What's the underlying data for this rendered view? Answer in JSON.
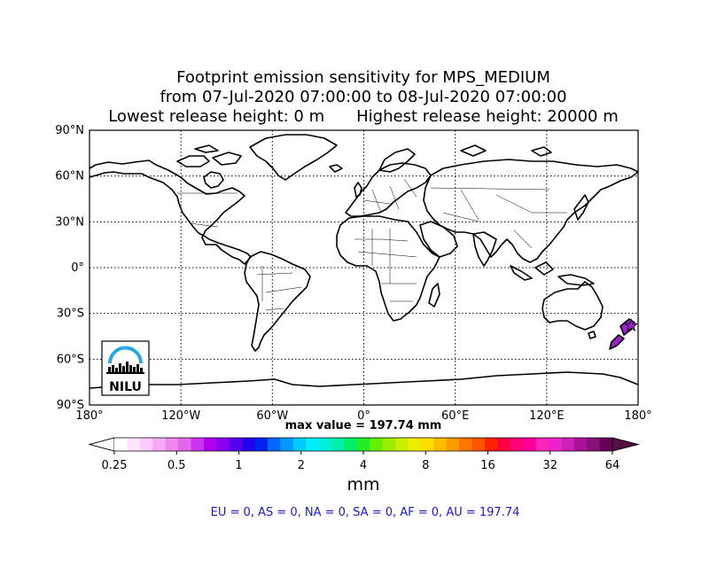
{
  "title": {
    "line1": "Footprint emission sensitivity for MPS_MEDIUM",
    "line2": "from 07-Jul-2020 07:00:00 to 08-Jul-2020 07:00:00",
    "line3a": "Lowest release height: 0 m",
    "line3b": "Highest release height: 20000 m"
  },
  "map": {
    "lat_labels": [
      "90°N",
      "60°N",
      "30°N",
      "0°",
      "30°S",
      "60°S",
      "90°S"
    ],
    "lon_labels": [
      "180°",
      "120°W",
      "60°W",
      "0°",
      "60°E",
      "120°E",
      "180°"
    ],
    "graticule": "dotted",
    "logo_text": "NILU",
    "max_marker": {
      "lon": 175.5,
      "lat": -38.0,
      "color": "#9b22c4"
    }
  },
  "max_value_text": "max value = 197.74 mm",
  "colorbar": {
    "ticks": [
      "0.25",
      "0.5",
      "1",
      "2",
      "4",
      "8",
      "16",
      "32",
      "64"
    ],
    "unit": "mm",
    "colors": [
      "#ffffff",
      "#ffe6ff",
      "#ffccff",
      "#f5aaf5",
      "#ee88ee",
      "#e266ee",
      "#cc33ee",
      "#b000ee",
      "#8800ee",
      "#5500ee",
      "#2200ee",
      "#0022ee",
      "#0066ff",
      "#0099ff",
      "#00ccff",
      "#00eeff",
      "#00eedd",
      "#00eeaa",
      "#00ee66",
      "#22ee22",
      "#66ee00",
      "#99ee00",
      "#ccee00",
      "#eeee00",
      "#ffdd00",
      "#ffbb00",
      "#ff9900",
      "#ff7700",
      "#ff5500",
      "#ff2200",
      "#ff0044",
      "#ff0077",
      "#ff0099",
      "#ff22bb",
      "#ee22cc",
      "#cc22bb",
      "#aa1199",
      "#881177",
      "#660055"
    ]
  },
  "regions_text": "EU = 0,  AS = 0,  NA = 0,  SA = 0,  AF = 0,  AU = 197.74"
}
